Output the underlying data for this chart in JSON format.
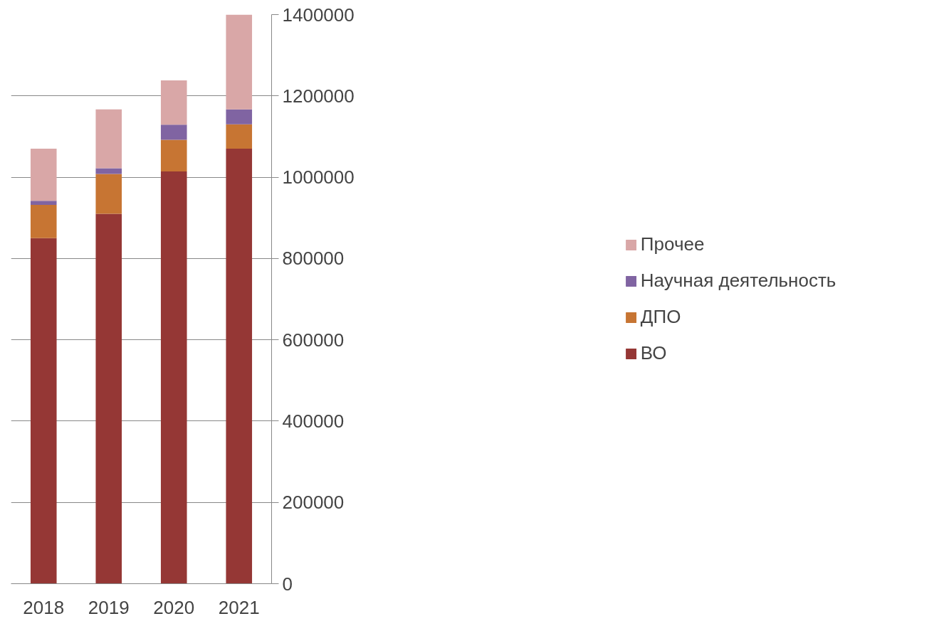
{
  "chart_data": {
    "type": "bar",
    "stacked": true,
    "categories": [
      "2018",
      "2019",
      "2020",
      "2021"
    ],
    "series": [
      {
        "name": "ВО",
        "color": "#953735",
        "values": [
          850000,
          910000,
          1014000,
          1070000
        ]
      },
      {
        "name": "ДПО",
        "color": "#c77533",
        "values": [
          82000,
          98000,
          78000,
          60000
        ]
      },
      {
        "name": "Научная деятельность",
        "color": "#8064a2",
        "values": [
          10000,
          14000,
          37000,
          37000
        ]
      },
      {
        "name": "Прочее",
        "color": "#d9a7a7",
        "values": [
          128000,
          145000,
          109000,
          233000
        ]
      }
    ],
    "ylim": [
      0,
      1400000
    ],
    "yticks": [
      0,
      200000,
      400000,
      600000,
      800000,
      1000000,
      1200000,
      1400000
    ],
    "grid": "y",
    "legend": "right"
  }
}
